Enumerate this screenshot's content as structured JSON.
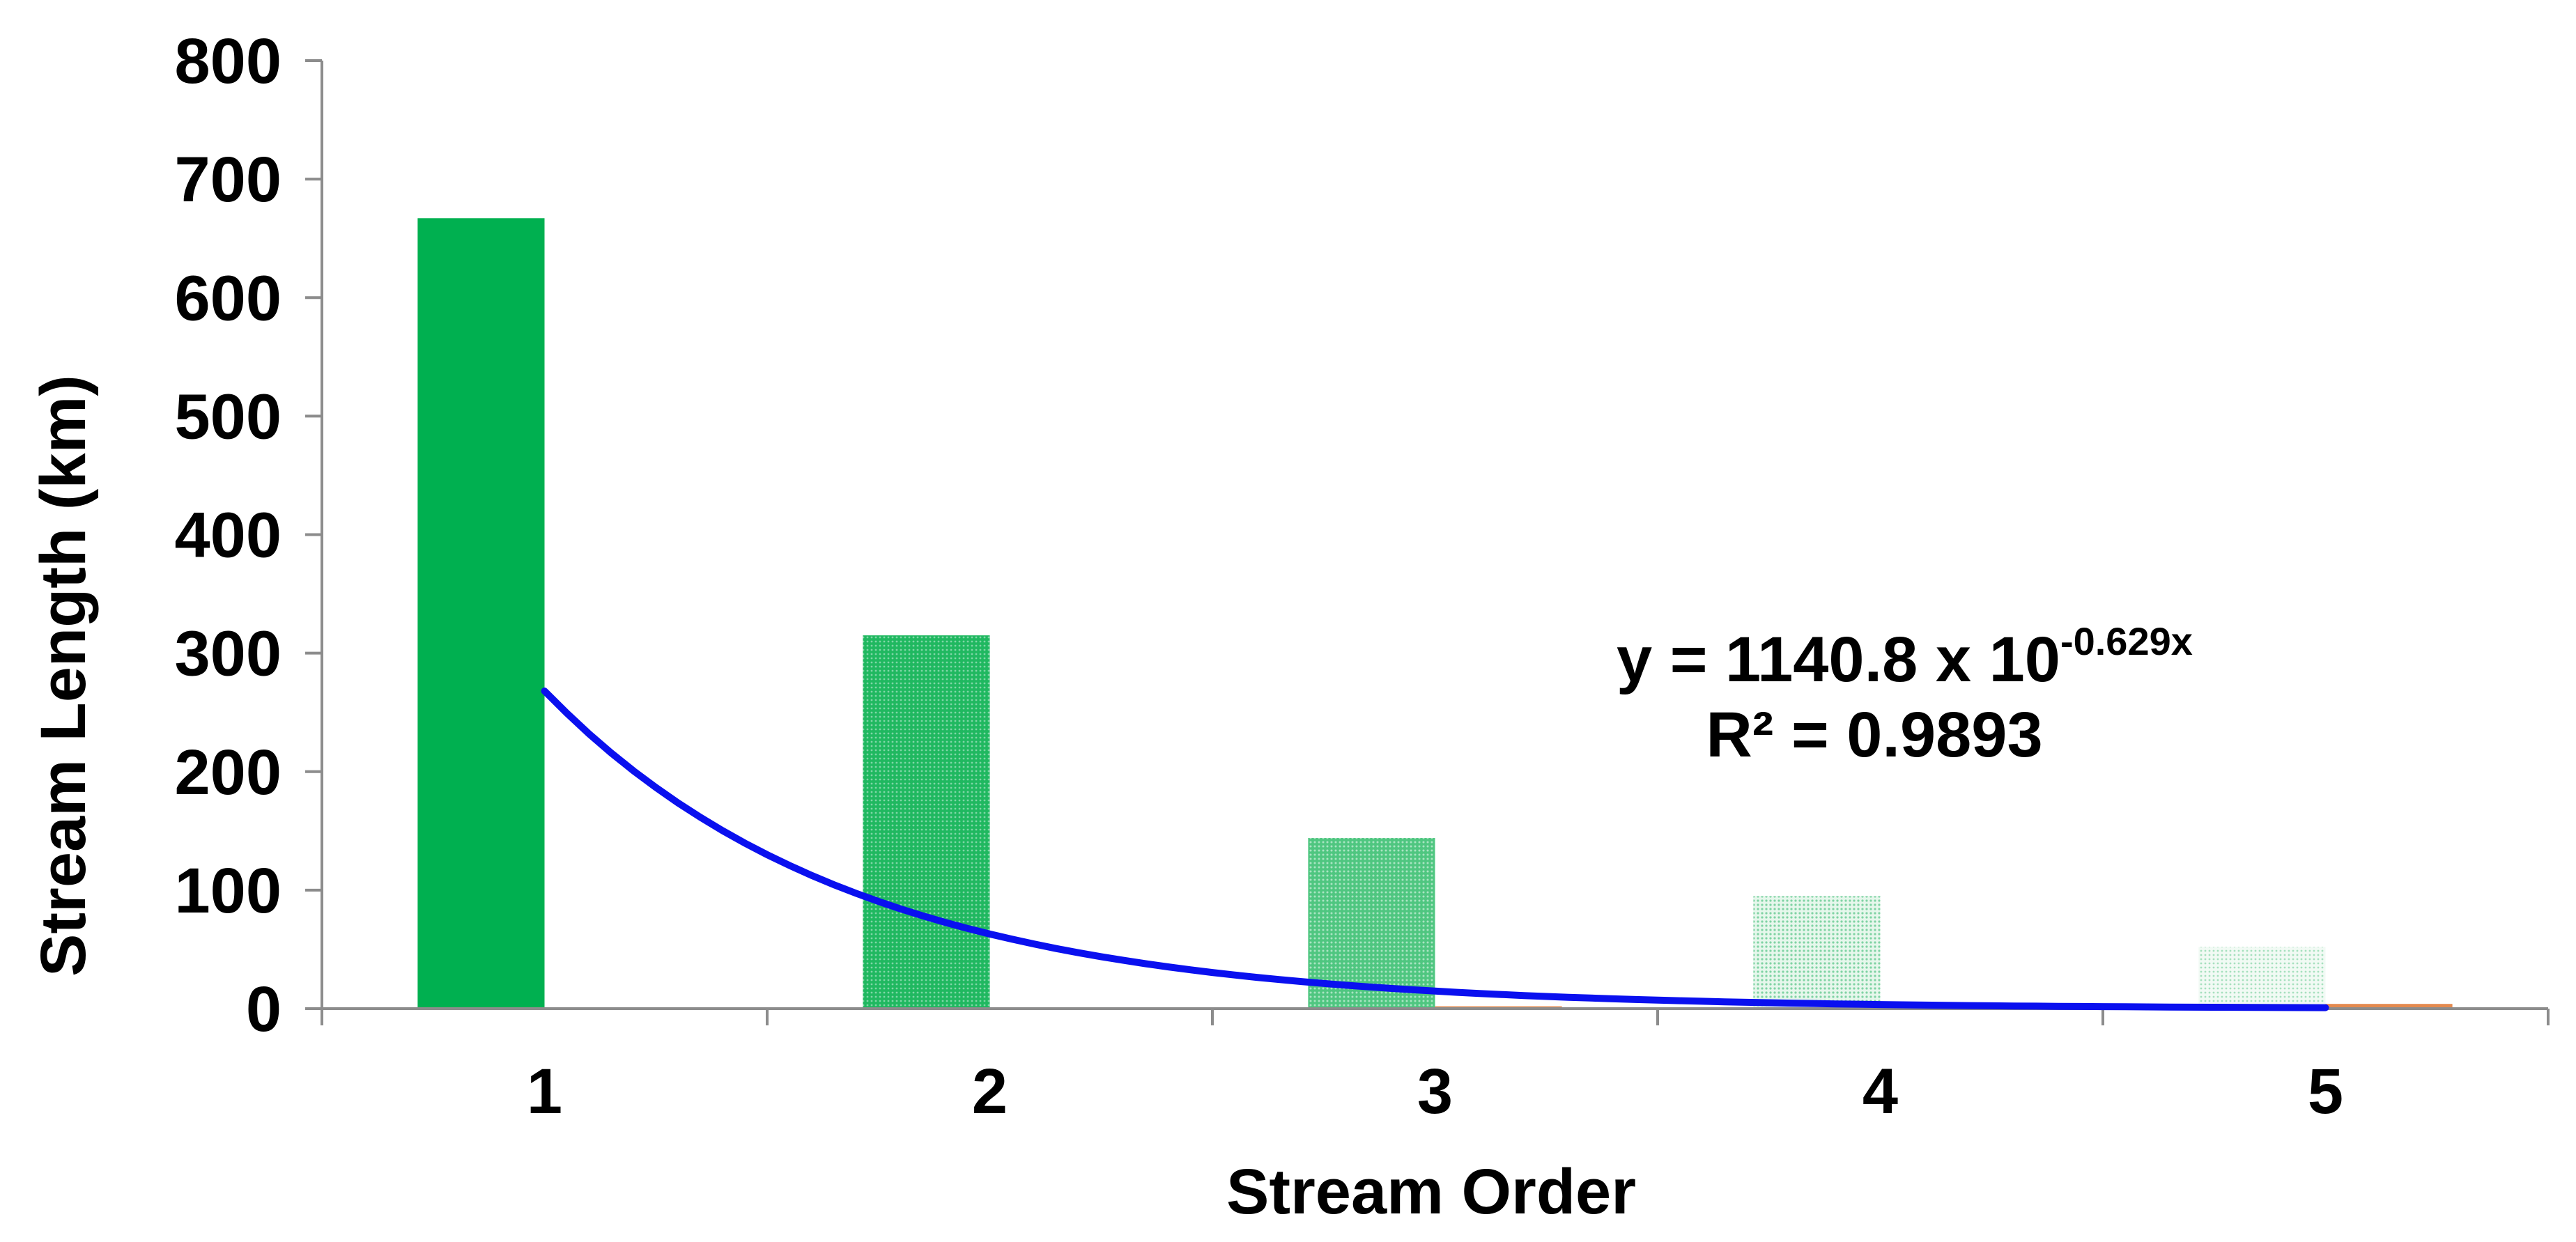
{
  "chart_data": {
    "type": "bar",
    "title": "",
    "xlabel": "Stream Order",
    "ylabel": "Stream Length (km)",
    "categories": [
      "1",
      "2",
      "3",
      "4",
      "5"
    ],
    "series": [
      {
        "values": [
          667,
          315,
          144,
          95,
          52
        ],
        "colors": [
          "#00b050",
          "#27bb67",
          "#52c783",
          "#9ddcb6",
          "#c7ebd5"
        ]
      },
      {
        "values": [
          0,
          1,
          2,
          3,
          4
        ],
        "color": "#e48a4f"
      }
    ],
    "ylim": [
      0,
      800
    ],
    "yticks": [
      "0",
      "100",
      "200",
      "300",
      "400",
      "500",
      "600",
      "700",
      "800"
    ],
    "trendline": {
      "type": "exponential",
      "a": 1140.8,
      "b": -0.629,
      "color": "#0a10ef",
      "x_range": [
        1,
        5
      ],
      "equation_base": "y = 1140.8 x 10",
      "equation_exponent": "-0.629x",
      "r_squared": "R² = 0.9893"
    },
    "grid": false,
    "legend": false
  }
}
